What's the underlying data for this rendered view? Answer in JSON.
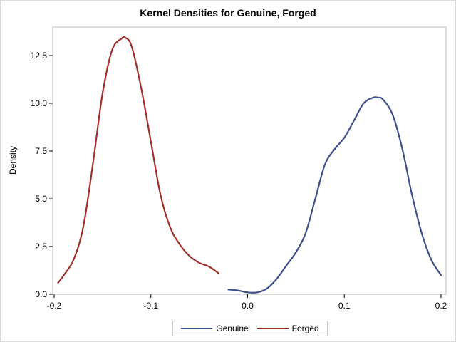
{
  "chart_data": {
    "type": "line",
    "title": "Kernel Densities for Genuine, Forged",
    "xlabel": "",
    "ylabel": "Density",
    "xlim": [
      -0.2,
      0.2
    ],
    "ylim": [
      0,
      14.2
    ],
    "xticks": [
      "-0.2",
      "-0.1",
      "0.0",
      "0.1",
      "0.2"
    ],
    "xtick_values": [
      -0.2,
      -0.1,
      0.0,
      0.1,
      0.2
    ],
    "yticks": [
      "0.0",
      "2.5",
      "5.0",
      "7.5",
      "10.0",
      "12.5"
    ],
    "ytick_values": [
      0.0,
      2.5,
      5.0,
      7.5,
      10.0,
      12.5
    ],
    "grid": false,
    "legend_position": "bottom",
    "series": [
      {
        "name": "Genuine",
        "color": "#3e4f8c",
        "x": [
          -0.02,
          -0.01,
          0.0,
          0.01,
          0.02,
          0.03,
          0.04,
          0.05,
          0.06,
          0.07,
          0.08,
          0.09,
          0.1,
          0.11,
          0.12,
          0.13,
          0.135,
          0.14,
          0.15,
          0.16,
          0.17,
          0.18,
          0.19,
          0.2
        ],
        "y": [
          0.25,
          0.2,
          0.1,
          0.1,
          0.3,
          0.8,
          1.5,
          2.2,
          3.2,
          5.0,
          6.8,
          7.6,
          8.2,
          9.1,
          10.0,
          10.3,
          10.3,
          10.2,
          9.4,
          7.6,
          5.2,
          3.2,
          1.8,
          1.0
        ]
      },
      {
        "name": "Forged",
        "color": "#a0302b",
        "x": [
          -0.196,
          -0.19,
          -0.18,
          -0.17,
          -0.16,
          -0.15,
          -0.14,
          -0.13,
          -0.127,
          -0.12,
          -0.11,
          -0.1,
          -0.09,
          -0.08,
          -0.07,
          -0.06,
          -0.05,
          -0.04,
          -0.03
        ],
        "y": [
          0.6,
          1.0,
          1.8,
          3.5,
          6.8,
          10.5,
          12.8,
          13.4,
          13.45,
          13.0,
          10.8,
          8.0,
          5.2,
          3.5,
          2.6,
          2.0,
          1.65,
          1.45,
          1.1
        ]
      }
    ]
  }
}
